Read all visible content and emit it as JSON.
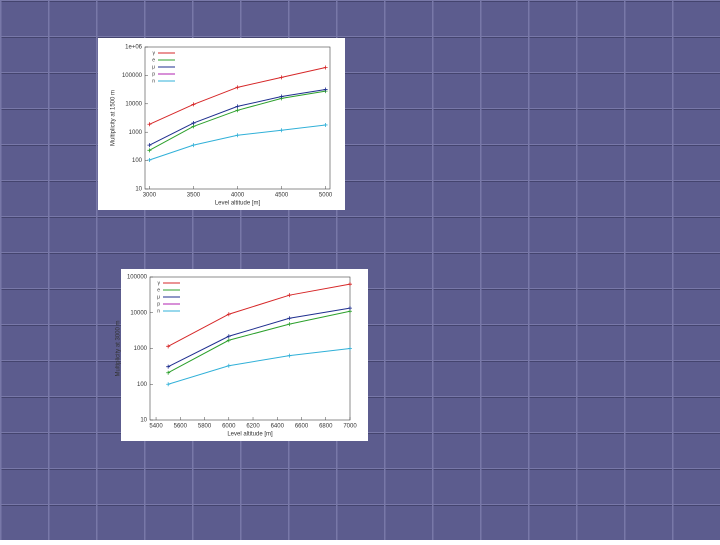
{
  "chart_data": [
    {
      "type": "line",
      "x_label": "Level altitude [m]",
      "y_label": "Multiplicity at 1500 m",
      "x": [
        3000,
        3500,
        4000,
        4500,
        5000
      ],
      "xlim": [
        2950,
        5050
      ],
      "xticks": [
        3000,
        3500,
        4000,
        4500,
        5000
      ],
      "ylim": [
        10,
        1000000
      ],
      "log_y": true,
      "yticks": [
        10,
        100,
        1000,
        10000,
        100000,
        {
          "value": 1000000,
          "label": "1e+06"
        }
      ],
      "legend": "upper left",
      "series": [
        {
          "name": "γ",
          "color": "#d62728",
          "values": [
            1900,
            9500,
            38000,
            85000,
            190000
          ]
        },
        {
          "name": "e",
          "color": "#2ca02c",
          "values": [
            230,
            1600,
            5900,
            15500,
            28000
          ]
        },
        {
          "name": "μ",
          "color": "#1f2f8f",
          "values": [
            350,
            2100,
            8100,
            18000,
            32000
          ]
        },
        {
          "name": "p",
          "color": "#b020b0",
          "values": [
            null,
            null,
            null,
            null,
            null
          ]
        },
        {
          "name": "n",
          "color": "#30b0d8",
          "values": [
            105,
            350,
            780,
            1170,
            1800
          ]
        }
      ]
    },
    {
      "type": "line",
      "x_label": "Level altitude [m]",
      "y_label": "Multiplicity at 3000 m",
      "x": [
        5500,
        6000,
        6500,
        7000
      ],
      "xlim": [
        5350,
        7000
      ],
      "xticks": [
        5400,
        5600,
        5800,
        6000,
        6200,
        6400,
        6600,
        6800,
        7000
      ],
      "ylim": [
        10,
        100000
      ],
      "log_y": true,
      "yticks": [
        10,
        100,
        1000,
        10000,
        100000
      ],
      "legend": "upper left",
      "series": [
        {
          "name": "γ",
          "color": "#d62728",
          "values": [
            1150,
            9100,
            31000,
            63000
          ]
        },
        {
          "name": "e",
          "color": "#2ca02c",
          "values": [
            210,
            1700,
            4800,
            11000
          ]
        },
        {
          "name": "μ",
          "color": "#1f2f8f",
          "values": [
            310,
            2200,
            7000,
            13500
          ]
        },
        {
          "name": "p",
          "color": "#b020b0",
          "values": [
            null,
            null,
            null,
            null
          ]
        },
        {
          "name": "n",
          "color": "#30b0d8",
          "values": [
            100,
            330,
            630,
            1000
          ]
        }
      ]
    }
  ]
}
